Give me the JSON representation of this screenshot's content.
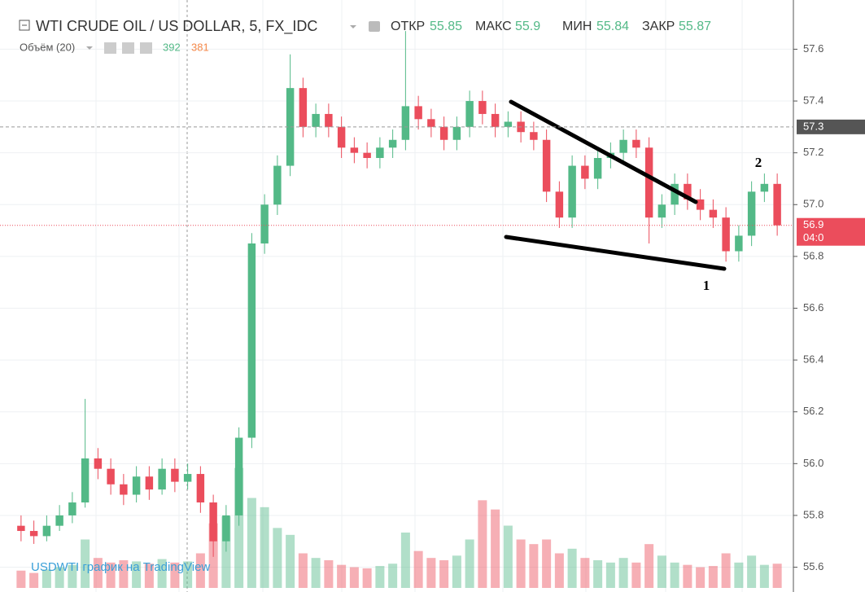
{
  "chart_data": {
    "type": "candlestick",
    "title": "WTI CRUDE OIL / US DOLLAR, 5, FX_IDC",
    "ohlc_labels": [
      "ОТКР",
      "МАКС",
      "МИН",
      "ЗАКР"
    ],
    "ohlc_values": [
      55.85,
      55.9,
      55.84,
      55.87
    ],
    "volume_title": "Объём (20)",
    "volume_values": [
      392,
      381
    ],
    "watermark": "USDWTI график на TradingView",
    "annotations": [
      "1",
      "2"
    ],
    "up_color": "#53b987",
    "down_color": "#eb4d5c",
    "ylim": [
      55.52,
      57.79
    ],
    "yticks": [
      55.6,
      55.8,
      {
        "value": 56,
        "label": "56.0"
      },
      56.2,
      56.4,
      56.6,
      56.8,
      {
        "value": 57,
        "label": "57.0"
      },
      57.2,
      57.4,
      57.6
    ],
    "price_lines": [
      {
        "value": 57.3,
        "label": "57.3"
      },
      {
        "value": 56.92,
        "label": "56.9"
      }
    ],
    "countdown": "04:0",
    "volume_lim": [
      0,
      1200
    ],
    "candles": [
      [
        55.76,
        55.8,
        55.7,
        55.74
      ],
      [
        55.74,
        55.78,
        55.69,
        55.72
      ],
      [
        55.72,
        55.8,
        55.7,
        55.76
      ],
      [
        55.76,
        55.84,
        55.74,
        55.8
      ],
      [
        55.8,
        55.89,
        55.77,
        55.85
      ],
      [
        55.85,
        56.25,
        55.83,
        56.02
      ],
      [
        56.02,
        56.06,
        55.94,
        55.98
      ],
      [
        55.98,
        56.02,
        55.88,
        55.92
      ],
      [
        55.92,
        55.96,
        55.84,
        55.88
      ],
      [
        55.88,
        55.99,
        55.85,
        55.95
      ],
      [
        55.95,
        55.99,
        55.86,
        55.9
      ],
      [
        55.9,
        56.02,
        55.88,
        55.98
      ],
      [
        55.98,
        56.02,
        55.89,
        55.93
      ],
      [
        55.93,
        56.0,
        55.9,
        55.96
      ],
      [
        55.96,
        55.99,
        55.81,
        55.85
      ],
      [
        55.85,
        55.88,
        55.64,
        55.7
      ],
      [
        55.7,
        55.84,
        55.66,
        55.8
      ],
      [
        55.8,
        56.14,
        55.76,
        56.1
      ],
      [
        56.1,
        56.89,
        56.06,
        56.85
      ],
      [
        56.85,
        57.04,
        56.81,
        57.0
      ],
      [
        57.0,
        57.19,
        56.96,
        57.15
      ],
      [
        57.15,
        57.58,
        57.11,
        57.45
      ],
      [
        57.45,
        57.49,
        57.26,
        57.3
      ],
      [
        57.3,
        57.39,
        57.26,
        57.35
      ],
      [
        57.35,
        57.39,
        57.26,
        57.3
      ],
      [
        57.3,
        57.34,
        57.18,
        57.22
      ],
      [
        57.22,
        57.26,
        57.16,
        57.2
      ],
      [
        57.2,
        57.24,
        57.14,
        57.18
      ],
      [
        57.18,
        57.26,
        57.14,
        57.22
      ],
      [
        57.22,
        57.29,
        57.18,
        57.25
      ],
      [
        57.25,
        57.67,
        57.21,
        57.38
      ],
      [
        57.38,
        57.42,
        57.29,
        57.33
      ],
      [
        57.33,
        57.37,
        57.26,
        57.3
      ],
      [
        57.3,
        57.34,
        57.21,
        57.25
      ],
      [
        57.25,
        57.34,
        57.21,
        57.3
      ],
      [
        57.3,
        57.44,
        57.26,
        57.4
      ],
      [
        57.4,
        57.44,
        57.31,
        57.35
      ],
      [
        57.35,
        57.39,
        57.26,
        57.3
      ],
      [
        57.3,
        57.36,
        57.26,
        57.32
      ],
      [
        57.32,
        57.36,
        57.24,
        57.28
      ],
      [
        57.28,
        57.32,
        57.21,
        57.25
      ],
      [
        57.25,
        57.29,
        57.01,
        57.05
      ],
      [
        57.05,
        57.09,
        56.91,
        56.95
      ],
      [
        56.95,
        57.19,
        56.91,
        57.15
      ],
      [
        57.15,
        57.19,
        57.06,
        57.1
      ],
      [
        57.1,
        57.22,
        57.06,
        57.18
      ],
      [
        57.18,
        57.24,
        57.14,
        57.2
      ],
      [
        57.2,
        57.29,
        57.16,
        57.25
      ],
      [
        57.25,
        57.29,
        57.18,
        57.22
      ],
      [
        57.22,
        57.26,
        56.85,
        56.95
      ],
      [
        56.95,
        57.04,
        56.91,
        57.0
      ],
      [
        57.0,
        57.12,
        56.96,
        57.08
      ],
      [
        57.08,
        57.12,
        56.98,
        57.02
      ],
      [
        57.02,
        57.06,
        56.94,
        56.98
      ],
      [
        56.98,
        57.02,
        56.91,
        56.95
      ],
      [
        56.95,
        56.99,
        56.78,
        56.82
      ],
      [
        56.82,
        56.92,
        56.78,
        56.88
      ],
      [
        56.88,
        57.09,
        56.84,
        57.05
      ],
      [
        57.05,
        57.12,
        57.01,
        57.08
      ],
      [
        57.08,
        57.12,
        56.88,
        56.92
      ]
    ],
    "volumes": [
      150,
      130,
      160,
      180,
      200,
      420,
      260,
      220,
      240,
      230,
      210,
      250,
      220,
      230,
      300,
      560,
      620,
      1040,
      780,
      700,
      520,
      460,
      300,
      260,
      240,
      200,
      180,
      170,
      190,
      210,
      480,
      320,
      260,
      240,
      280,
      420,
      760,
      680,
      540,
      420,
      380,
      420,
      300,
      340,
      260,
      240,
      220,
      260,
      220,
      380,
      280,
      220,
      200,
      180,
      190,
      300,
      220,
      280,
      200,
      210
    ]
  }
}
